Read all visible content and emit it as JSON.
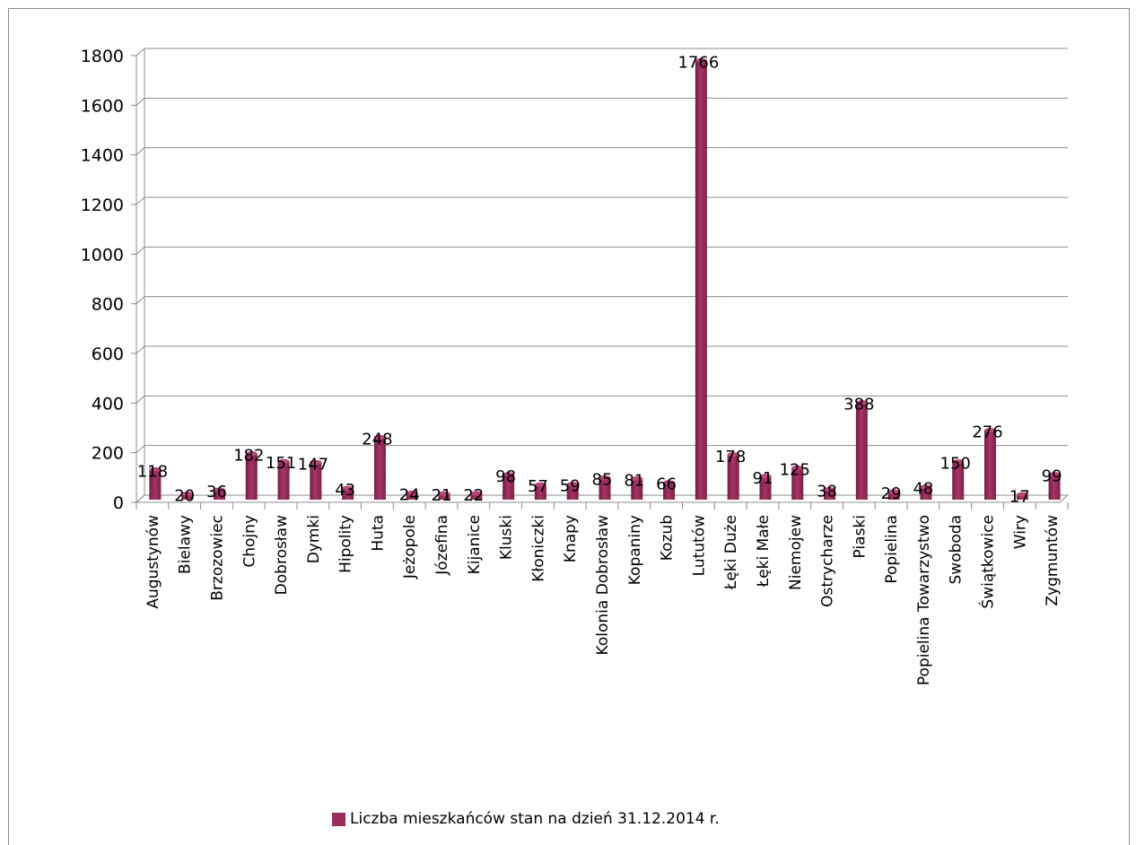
{
  "chart_data": {
    "type": "bar",
    "categories": [
      "Augustynów",
      "Bielawy",
      "Brzozowiec",
      "Chojny",
      "Dobrosław",
      "Dymki",
      "Hipolity",
      "Huta",
      "Jeżopole",
      "Józefina",
      "Kijanice",
      "Kluski",
      "Kłoniczki",
      "Knapy",
      "Kolonia Dobrosław",
      "Kopaniny",
      "Kozub",
      "Lututów",
      "Łęki Duże",
      "Łęki Małe",
      "Niemojew",
      "Ostrycharze",
      "Piaski",
      "Popielina",
      "Popielina Towarzystwo",
      "Swoboda",
      "Świątkowice",
      "Wiry",
      "Zygmuntów"
    ],
    "series": [
      {
        "name": "Liczba mieszkańców stan na dzień 31.12.2014 r.",
        "values": [
          118,
          20,
          36,
          182,
          151,
          147,
          43,
          248,
          24,
          21,
          22,
          98,
          57,
          59,
          85,
          81,
          66,
          1766,
          178,
          91,
          125,
          38,
          388,
          29,
          48,
          150,
          276,
          17,
          99
        ],
        "color": "#9b2d5e"
      }
    ],
    "ylim": [
      0,
      1800
    ],
    "yticks": [
      0,
      200,
      400,
      600,
      800,
      1000,
      1200,
      1400,
      1600,
      1800
    ],
    "grid": true,
    "legend_position": "bottom",
    "data_labels": true
  }
}
